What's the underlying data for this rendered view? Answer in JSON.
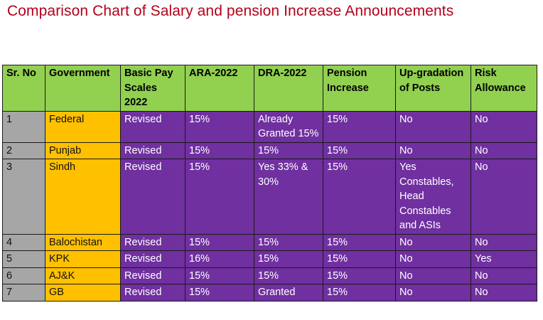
{
  "title": "Comparison Chart of Salary and pension Increase Announcements",
  "table": {
    "headers": [
      "Sr. No",
      "Government",
      "Basic Pay Scales 2022",
      "ARA-2022",
      "DRA-2022",
      "Pension Increase",
      "Up-gradation of Posts",
      "Risk Allowance"
    ],
    "rows": [
      {
        "sr": "1",
        "government": "Federal",
        "basic_pay": "Revised",
        "ara": "15%",
        "dra": "Already Granted 15%",
        "pension": "15%",
        "upgradation": "No",
        "risk": "No"
      },
      {
        "sr": "2",
        "government": "Punjab",
        "basic_pay": "Revised",
        "ara": "15%",
        "dra": "15%",
        "pension": "15%",
        "upgradation": "No",
        "risk": "No"
      },
      {
        "sr": "3",
        "government": "Sindh",
        "basic_pay": "Revised",
        "ara": "15%",
        "dra": "Yes 33% & 30%",
        "pension": "15%",
        "upgradation": "Yes Constables, Head Constables and ASIs",
        "risk": "No"
      },
      {
        "sr": "4",
        "government": "Balochistan",
        "basic_pay": "Revised",
        "ara": "15%",
        "dra": "15%",
        "pension": "15%",
        "upgradation": "No",
        "risk": "No"
      },
      {
        "sr": "5",
        "government": "KPK",
        "basic_pay": "Revised",
        "ara": "16%",
        "dra": "15%",
        "pension": "15%",
        "upgradation": "No",
        "risk": "Yes"
      },
      {
        "sr": "6",
        "government": "AJ&K",
        "basic_pay": "Revised",
        "ara": "15%",
        "dra": "15%",
        "pension": "15%",
        "upgradation": "No",
        "risk": "No"
      },
      {
        "sr": "7",
        "government": "GB",
        "basic_pay": "Revised",
        "ara": "15%",
        "dra": "Granted",
        "pension": "15%",
        "upgradation": "No",
        "risk": "No"
      }
    ]
  },
  "colors": {
    "title": "#b3001b",
    "header_bg": "#92d050",
    "sr_bg": "#a6a6a6",
    "government_bg": "#ffc000",
    "value_bg": "#7030a0"
  }
}
